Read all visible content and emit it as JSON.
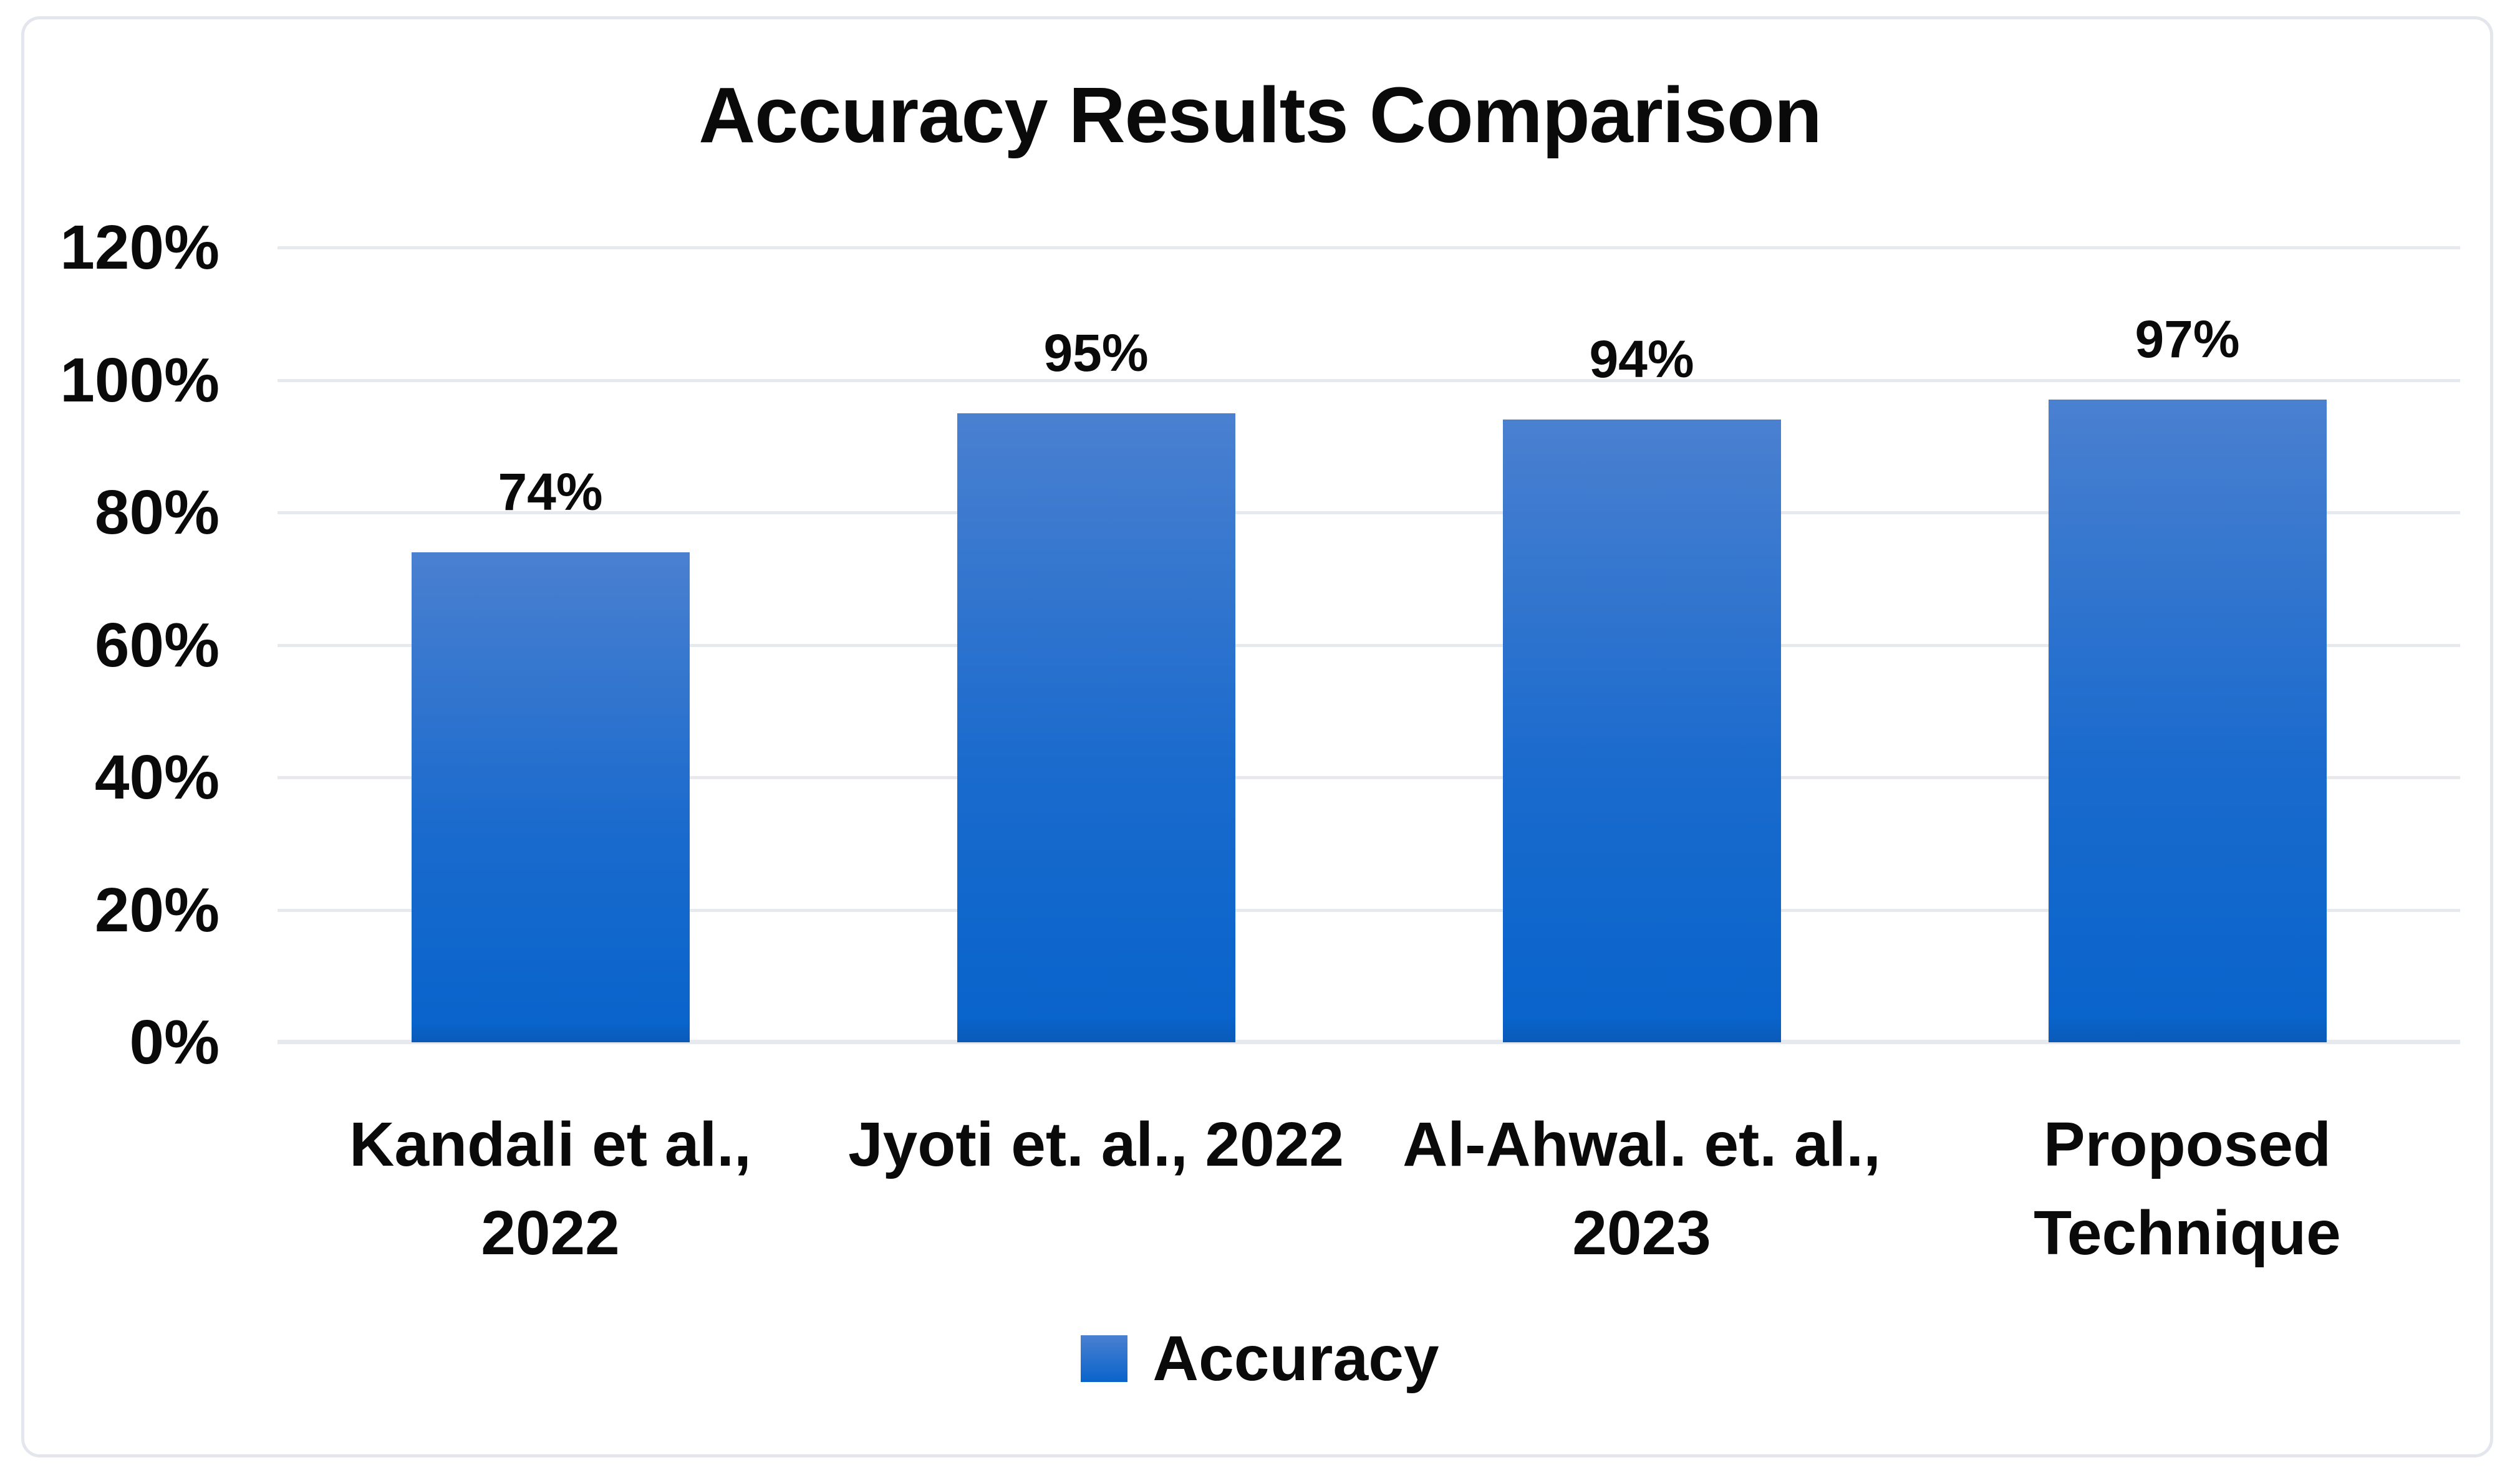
{
  "chart_data": {
    "type": "bar",
    "title": "Accuracy Results Comparison",
    "categories": [
      "Kandali et al., 2022",
      "Jyoti et. al., 2022",
      "Al-Ahwal. et. al., 2023",
      "Proposed Technique"
    ],
    "category_lines": [
      [
        "Kandali et al.,",
        "2022"
      ],
      [
        "Jyoti et. al., 2022"
      ],
      [
        "Al-Ahwal. et. al.,",
        "2023"
      ],
      [
        "Proposed",
        "Technique"
      ]
    ],
    "series": [
      {
        "name": "Accuracy",
        "values": [
          74,
          95,
          94,
          97
        ]
      }
    ],
    "value_labels": [
      "74%",
      "95%",
      "94%",
      "97%"
    ],
    "xlabel": "",
    "ylabel": "",
    "ylim": [
      0,
      120
    ],
    "yticks": [
      {
        "value": 0,
        "label": "0%"
      },
      {
        "value": 20,
        "label": "20%"
      },
      {
        "value": 40,
        "label": "40%"
      },
      {
        "value": 60,
        "label": "60%"
      },
      {
        "value": 80,
        "label": "80%"
      },
      {
        "value": 100,
        "label": "100%"
      },
      {
        "value": 120,
        "label": "120%"
      }
    ],
    "grid": true,
    "legend": {
      "position": "bottom",
      "entries": [
        "Accuracy"
      ]
    },
    "colors": {
      "bar_gradient_top": "#4a80d0",
      "bar_gradient_mid": "#1b6bcd",
      "bar_gradient_bottom": "#0964cb",
      "bar_bottom_edge": "#0a5ab8",
      "legend_swatch": "#1a6acb",
      "gridline": "#e6eaef",
      "text": "#0a0a0a",
      "frame_border": "#e3e7ed",
      "background": "#ffffff"
    }
  }
}
